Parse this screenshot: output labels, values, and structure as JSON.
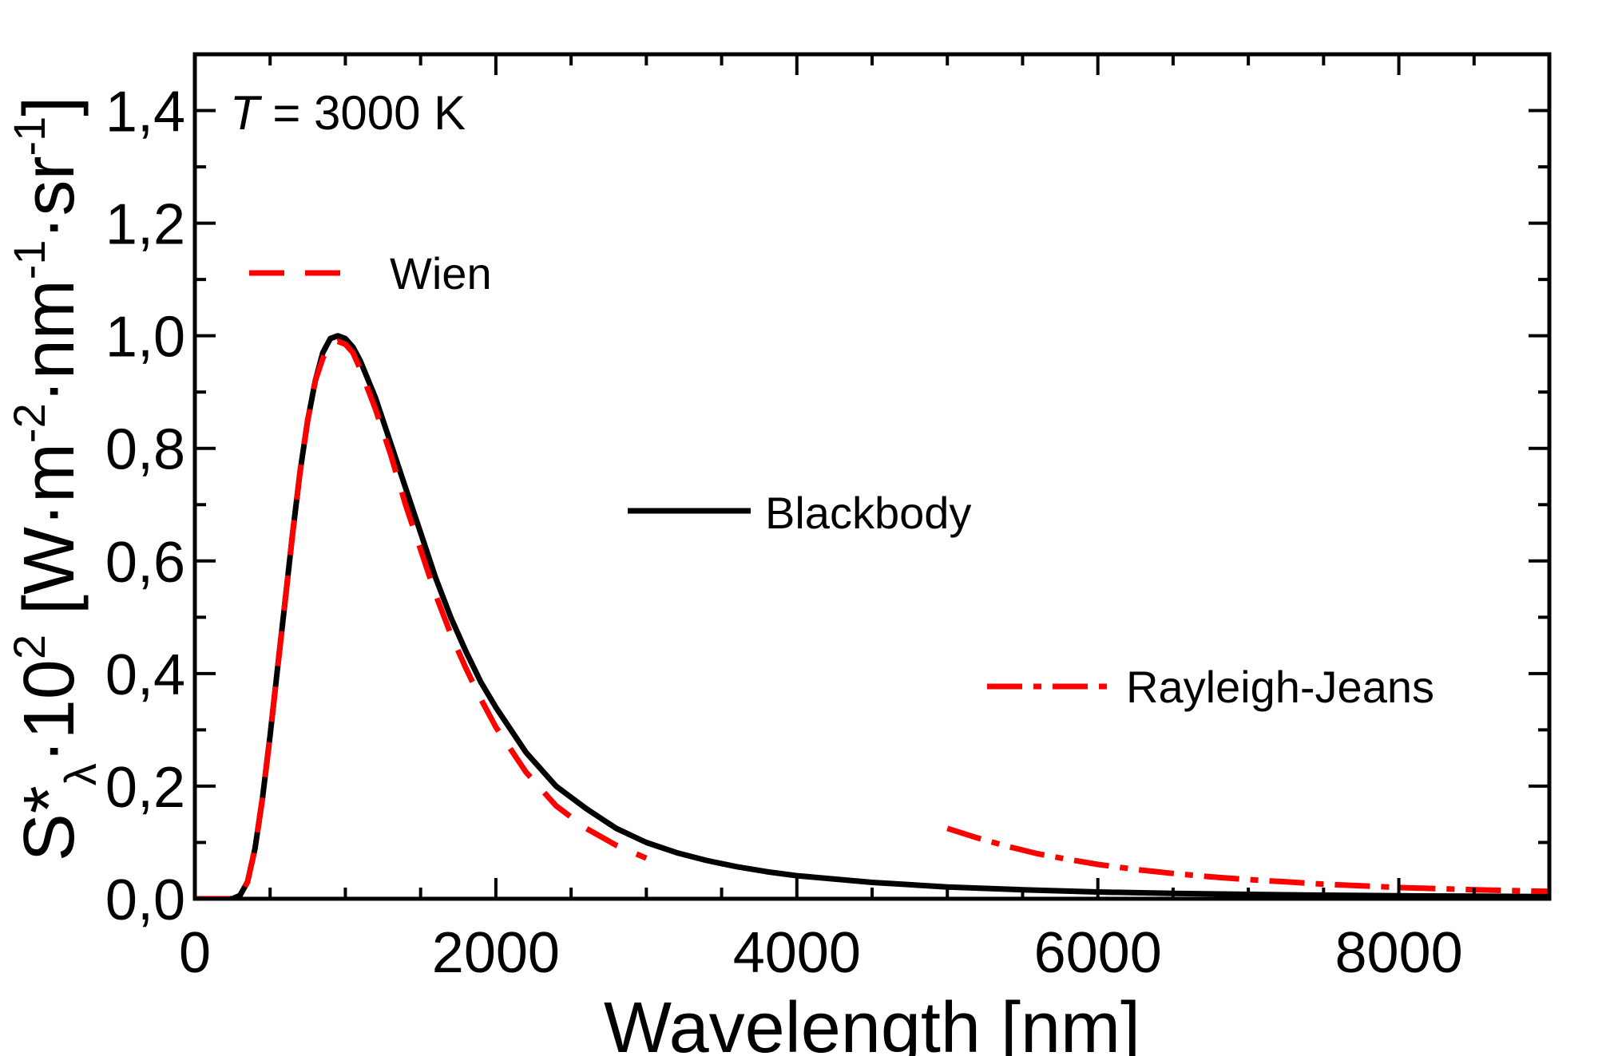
{
  "chart_data": {
    "type": "line",
    "title": "",
    "xlabel": "Wavelength [nm]",
    "ylabel": {
      "base": "S*",
      "subscript": "λ",
      "mid": "·10",
      "exp1": "2",
      "unit_a": " [W·m",
      "exp2": "-2",
      "unit_b": "·nm",
      "exp3": "-1",
      "unit_c": "·sr",
      "exp4": "-1",
      "unit_d": "]"
    },
    "xlim": [
      0,
      9000
    ],
    "ylim": [
      0,
      1.5
    ],
    "xticks": [
      {
        "value": 0,
        "label": "0"
      },
      {
        "value": 2000,
        "label": "2000"
      },
      {
        "value": 4000,
        "label": "4000"
      },
      {
        "value": 6000,
        "label": "6000"
      },
      {
        "value": 8000,
        "label": "8000"
      }
    ],
    "yticks": [
      {
        "value": 0,
        "label": "0,0"
      },
      {
        "value": 0.2,
        "label": "0,2"
      },
      {
        "value": 0.4,
        "label": "0,4"
      },
      {
        "value": 0.6,
        "label": "0,6"
      },
      {
        "value": 0.8,
        "label": "0,8"
      },
      {
        "value": 1.0,
        "label": "1,0"
      },
      {
        "value": 1.2,
        "label": "1,2"
      },
      {
        "value": 1.4,
        "label": "1,4"
      }
    ],
    "annotation": {
      "var": "T",
      "rest": " = 3000 K"
    },
    "series": [
      {
        "name": "Blackbody",
        "color": "#000000",
        "dash": "solid",
        "x": [
          0,
          250,
          300,
          350,
          400,
          450,
          500,
          550,
          600,
          650,
          700,
          750,
          800,
          850,
          900,
          950,
          1000,
          1050,
          1100,
          1200,
          1300,
          1400,
          1500,
          1600,
          1700,
          1800,
          1900,
          2000,
          2200,
          2400,
          2600,
          2800,
          3000,
          3200,
          3400,
          3600,
          3800,
          4000,
          4500,
          5000,
          5500,
          6000,
          6500,
          7000,
          7500,
          8000,
          8500,
          9000
        ],
        "y": [
          0,
          0,
          0.006,
          0.03,
          0.09,
          0.18,
          0.29,
          0.41,
          0.53,
          0.65,
          0.76,
          0.85,
          0.92,
          0.97,
          0.995,
          1.0,
          0.995,
          0.98,
          0.955,
          0.89,
          0.81,
          0.73,
          0.65,
          0.57,
          0.5,
          0.44,
          0.385,
          0.34,
          0.26,
          0.2,
          0.16,
          0.125,
          0.1,
          0.082,
          0.068,
          0.057,
          0.048,
          0.041,
          0.029,
          0.021,
          0.016,
          0.012,
          0.0095,
          0.0078,
          0.0064,
          0.0053,
          0.0045,
          0.0038
        ]
      },
      {
        "name": "Wien",
        "color": "#ff0000",
        "dash": "dashed",
        "x": [
          0,
          250,
          300,
          350,
          400,
          450,
          500,
          550,
          600,
          650,
          700,
          750,
          800,
          850,
          900,
          950,
          1000,
          1050,
          1100,
          1200,
          1300,
          1400,
          1500,
          1600,
          1700,
          1800,
          1900,
          2000,
          2200,
          2400,
          2600,
          2800,
          3000
        ],
        "y": [
          0,
          0,
          0.006,
          0.03,
          0.09,
          0.18,
          0.29,
          0.41,
          0.53,
          0.65,
          0.76,
          0.85,
          0.92,
          0.96,
          0.985,
          0.99,
          0.985,
          0.97,
          0.94,
          0.87,
          0.79,
          0.7,
          0.62,
          0.54,
          0.47,
          0.41,
          0.355,
          0.305,
          0.225,
          0.165,
          0.125,
          0.095,
          0.072
        ]
      },
      {
        "name": "Rayleigh-Jeans",
        "color": "#ff0000",
        "dash": "dashdot",
        "x": [
          5000,
          5200,
          5400,
          5600,
          5800,
          6000,
          6250,
          6500,
          6750,
          7000,
          7250,
          7500,
          7750,
          8000,
          8250,
          8500,
          8750,
          9000
        ],
        "y": [
          0.125,
          0.108,
          0.093,
          0.08,
          0.07,
          0.061,
          0.052,
          0.045,
          0.039,
          0.034,
          0.03,
          0.026,
          0.023,
          0.02,
          0.018,
          0.016,
          0.0145,
          0.013
        ]
      }
    ],
    "legend": [
      {
        "series": "Wien",
        "text": "Wien"
      },
      {
        "series": "Blackbody",
        "text": "Blackbody"
      },
      {
        "series": "Rayleigh-Jeans",
        "text": "Rayleigh-Jeans"
      }
    ],
    "grid": false,
    "legend_placement": "inside, individual labels"
  }
}
